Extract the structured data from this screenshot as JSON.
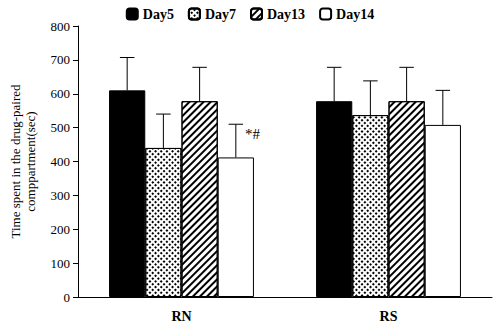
{
  "chart_data": {
    "type": "bar",
    "y_label": "Time spent in the drug-paired\ncomppartment(sec)",
    "categories": [
      "RN",
      "RS"
    ],
    "series": [
      {
        "name": "Day5",
        "color": "#000000",
        "values": [
          610,
          578
        ],
        "errors": [
          97,
          100
        ]
      },
      {
        "name": "Day7",
        "color": "#ffffff",
        "values": [
          440,
          537
        ],
        "errors": [
          100,
          101
        ]
      },
      {
        "name": "Day13",
        "color": "#ffffff",
        "values": [
          578,
          578
        ],
        "errors": [
          100,
          100
        ]
      },
      {
        "name": "Day14",
        "color": "#ffffff",
        "values": [
          412,
          508
        ],
        "errors": [
          98,
          102
        ]
      }
    ],
    "annotations": [
      {
        "text": "*#",
        "category": "RN",
        "series": "Day14"
      }
    ],
    "ylim": [
      0,
      800
    ],
    "yticks": [
      0,
      100,
      200,
      300,
      400,
      500,
      600,
      700,
      800
    ],
    "grid": false,
    "legend": "top"
  }
}
